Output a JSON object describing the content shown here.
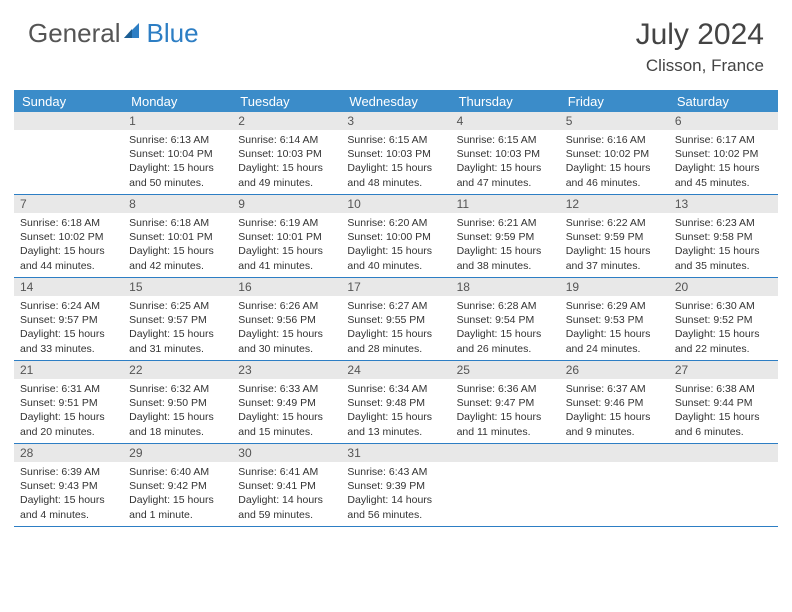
{
  "colors": {
    "header_blue": "#3b8cc9",
    "rule_blue": "#2d7ec4",
    "daynum_bg": "#e8e8e8",
    "logo_gray": "#555555",
    "logo_blue": "#2d7ec4",
    "text": "#333333",
    "background": "#ffffff"
  },
  "logo": {
    "general": "General",
    "blue": "Blue"
  },
  "title": {
    "month_year": "July 2024",
    "location": "Clisson, France"
  },
  "weekdays": [
    "Sunday",
    "Monday",
    "Tuesday",
    "Wednesday",
    "Thursday",
    "Friday",
    "Saturday"
  ],
  "weeks": [
    [
      {
        "num": "",
        "lines": []
      },
      {
        "num": "1",
        "lines": [
          "Sunrise: 6:13 AM",
          "Sunset: 10:04 PM",
          "Daylight: 15 hours",
          "and 50 minutes."
        ]
      },
      {
        "num": "2",
        "lines": [
          "Sunrise: 6:14 AM",
          "Sunset: 10:03 PM",
          "Daylight: 15 hours",
          "and 49 minutes."
        ]
      },
      {
        "num": "3",
        "lines": [
          "Sunrise: 6:15 AM",
          "Sunset: 10:03 PM",
          "Daylight: 15 hours",
          "and 48 minutes."
        ]
      },
      {
        "num": "4",
        "lines": [
          "Sunrise: 6:15 AM",
          "Sunset: 10:03 PM",
          "Daylight: 15 hours",
          "and 47 minutes."
        ]
      },
      {
        "num": "5",
        "lines": [
          "Sunrise: 6:16 AM",
          "Sunset: 10:02 PM",
          "Daylight: 15 hours",
          "and 46 minutes."
        ]
      },
      {
        "num": "6",
        "lines": [
          "Sunrise: 6:17 AM",
          "Sunset: 10:02 PM",
          "Daylight: 15 hours",
          "and 45 minutes."
        ]
      }
    ],
    [
      {
        "num": "7",
        "lines": [
          "Sunrise: 6:18 AM",
          "Sunset: 10:02 PM",
          "Daylight: 15 hours",
          "and 44 minutes."
        ]
      },
      {
        "num": "8",
        "lines": [
          "Sunrise: 6:18 AM",
          "Sunset: 10:01 PM",
          "Daylight: 15 hours",
          "and 42 minutes."
        ]
      },
      {
        "num": "9",
        "lines": [
          "Sunrise: 6:19 AM",
          "Sunset: 10:01 PM",
          "Daylight: 15 hours",
          "and 41 minutes."
        ]
      },
      {
        "num": "10",
        "lines": [
          "Sunrise: 6:20 AM",
          "Sunset: 10:00 PM",
          "Daylight: 15 hours",
          "and 40 minutes."
        ]
      },
      {
        "num": "11",
        "lines": [
          "Sunrise: 6:21 AM",
          "Sunset: 9:59 PM",
          "Daylight: 15 hours",
          "and 38 minutes."
        ]
      },
      {
        "num": "12",
        "lines": [
          "Sunrise: 6:22 AM",
          "Sunset: 9:59 PM",
          "Daylight: 15 hours",
          "and 37 minutes."
        ]
      },
      {
        "num": "13",
        "lines": [
          "Sunrise: 6:23 AM",
          "Sunset: 9:58 PM",
          "Daylight: 15 hours",
          "and 35 minutes."
        ]
      }
    ],
    [
      {
        "num": "14",
        "lines": [
          "Sunrise: 6:24 AM",
          "Sunset: 9:57 PM",
          "Daylight: 15 hours",
          "and 33 minutes."
        ]
      },
      {
        "num": "15",
        "lines": [
          "Sunrise: 6:25 AM",
          "Sunset: 9:57 PM",
          "Daylight: 15 hours",
          "and 31 minutes."
        ]
      },
      {
        "num": "16",
        "lines": [
          "Sunrise: 6:26 AM",
          "Sunset: 9:56 PM",
          "Daylight: 15 hours",
          "and 30 minutes."
        ]
      },
      {
        "num": "17",
        "lines": [
          "Sunrise: 6:27 AM",
          "Sunset: 9:55 PM",
          "Daylight: 15 hours",
          "and 28 minutes."
        ]
      },
      {
        "num": "18",
        "lines": [
          "Sunrise: 6:28 AM",
          "Sunset: 9:54 PM",
          "Daylight: 15 hours",
          "and 26 minutes."
        ]
      },
      {
        "num": "19",
        "lines": [
          "Sunrise: 6:29 AM",
          "Sunset: 9:53 PM",
          "Daylight: 15 hours",
          "and 24 minutes."
        ]
      },
      {
        "num": "20",
        "lines": [
          "Sunrise: 6:30 AM",
          "Sunset: 9:52 PM",
          "Daylight: 15 hours",
          "and 22 minutes."
        ]
      }
    ],
    [
      {
        "num": "21",
        "lines": [
          "Sunrise: 6:31 AM",
          "Sunset: 9:51 PM",
          "Daylight: 15 hours",
          "and 20 minutes."
        ]
      },
      {
        "num": "22",
        "lines": [
          "Sunrise: 6:32 AM",
          "Sunset: 9:50 PM",
          "Daylight: 15 hours",
          "and 18 minutes."
        ]
      },
      {
        "num": "23",
        "lines": [
          "Sunrise: 6:33 AM",
          "Sunset: 9:49 PM",
          "Daylight: 15 hours",
          "and 15 minutes."
        ]
      },
      {
        "num": "24",
        "lines": [
          "Sunrise: 6:34 AM",
          "Sunset: 9:48 PM",
          "Daylight: 15 hours",
          "and 13 minutes."
        ]
      },
      {
        "num": "25",
        "lines": [
          "Sunrise: 6:36 AM",
          "Sunset: 9:47 PM",
          "Daylight: 15 hours",
          "and 11 minutes."
        ]
      },
      {
        "num": "26",
        "lines": [
          "Sunrise: 6:37 AM",
          "Sunset: 9:46 PM",
          "Daylight: 15 hours",
          "and 9 minutes."
        ]
      },
      {
        "num": "27",
        "lines": [
          "Sunrise: 6:38 AM",
          "Sunset: 9:44 PM",
          "Daylight: 15 hours",
          "and 6 minutes."
        ]
      }
    ],
    [
      {
        "num": "28",
        "lines": [
          "Sunrise: 6:39 AM",
          "Sunset: 9:43 PM",
          "Daylight: 15 hours",
          "and 4 minutes."
        ]
      },
      {
        "num": "29",
        "lines": [
          "Sunrise: 6:40 AM",
          "Sunset: 9:42 PM",
          "Daylight: 15 hours",
          "and 1 minute."
        ]
      },
      {
        "num": "30",
        "lines": [
          "Sunrise: 6:41 AM",
          "Sunset: 9:41 PM",
          "Daylight: 14 hours",
          "and 59 minutes."
        ]
      },
      {
        "num": "31",
        "lines": [
          "Sunrise: 6:43 AM",
          "Sunset: 9:39 PM",
          "Daylight: 14 hours",
          "and 56 minutes."
        ]
      },
      {
        "num": "",
        "lines": []
      },
      {
        "num": "",
        "lines": []
      },
      {
        "num": "",
        "lines": []
      }
    ]
  ]
}
